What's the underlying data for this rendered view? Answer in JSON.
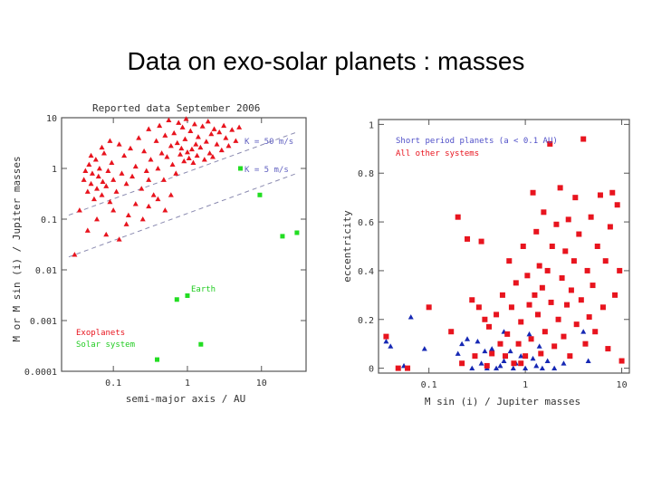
{
  "slide_title": "Data on exo-solar planets : masses",
  "colors": {
    "red": "#e8141e",
    "blue": "#1628b4",
    "green": "#22dd22",
    "frame": "#555555",
    "dash": "#8a8ab0"
  },
  "chart_data": [
    {
      "type": "scatter",
      "title": "Reported data September 2006",
      "xlabel": "semi-major axis / AU",
      "ylabel": "M or M sin (i) / Jupiter masses",
      "xscale": "log",
      "yscale": "log",
      "xlim": [
        0.02,
        40
      ],
      "ylim": [
        0.0001,
        10
      ],
      "x_ticks": [
        {
          "v": 0.1,
          "label": "0.1"
        },
        {
          "v": 1,
          "label": "1"
        },
        {
          "v": 10,
          "label": "10"
        }
      ],
      "y_ticks": [
        {
          "v": 10,
          "label": "10"
        },
        {
          "v": 1,
          "label": "1"
        },
        {
          "v": 0.1,
          "label": "0.1"
        },
        {
          "v": 0.01,
          "label": "0.01"
        },
        {
          "v": 0.001,
          "label": "0.001"
        },
        {
          "v": 0.0001,
          "label": "0.0001"
        }
      ],
      "lines": [
        {
          "label": "K = 50 m/s",
          "points": [
            [
              0.025,
              0.12
            ],
            [
              30,
              5.2
            ]
          ]
        },
        {
          "label": "K = 5 m/s",
          "points": [
            [
              0.025,
              0.018
            ],
            [
              30,
              0.8
            ]
          ]
        }
      ],
      "annotations": [
        {
          "text": "Earth",
          "x": 1,
          "y": 0.005
        }
      ],
      "legend": [
        "Exoplanets",
        "Solar system"
      ],
      "series": [
        {
          "name": "Exoplanets",
          "marker": "triangle",
          "color": "red",
          "points": [
            [
              0.04,
              0.6
            ],
            [
              0.042,
              0.9
            ],
            [
              0.045,
              0.35
            ],
            [
              0.047,
              1.2
            ],
            [
              0.05,
              0.5
            ],
            [
              0.052,
              0.8
            ],
            [
              0.055,
              0.25
            ],
            [
              0.058,
              1.5
            ],
            [
              0.06,
              0.4
            ],
            [
              0.063,
              0.7
            ],
            [
              0.065,
              1.0
            ],
            [
              0.07,
              0.3
            ],
            [
              0.072,
              0.55
            ],
            [
              0.075,
              2.0
            ],
            [
              0.08,
              0.45
            ],
            [
              0.085,
              0.9
            ],
            [
              0.09,
              0.22
            ],
            [
              0.095,
              1.3
            ],
            [
              0.1,
              0.6
            ],
            [
              0.11,
              0.35
            ],
            [
              0.12,
              3.0
            ],
            [
              0.13,
              0.8
            ],
            [
              0.14,
              1.8
            ],
            [
              0.15,
              0.5
            ],
            [
              0.16,
              0.12
            ],
            [
              0.17,
              2.5
            ],
            [
              0.18,
              0.7
            ],
            [
              0.2,
              1.1
            ],
            [
              0.22,
              4.0
            ],
            [
              0.24,
              0.4
            ],
            [
              0.26,
              2.2
            ],
            [
              0.28,
              0.9
            ],
            [
              0.3,
              6.0
            ],
            [
              0.32,
              1.5
            ],
            [
              0.35,
              0.3
            ],
            [
              0.38,
              3.5
            ],
            [
              0.4,
              1.0
            ],
            [
              0.42,
              7.0
            ],
            [
              0.45,
              2.0
            ],
            [
              0.48,
              0.6
            ],
            [
              0.5,
              4.5
            ],
            [
              0.53,
              1.7
            ],
            [
              0.56,
              9.0
            ],
            [
              0.6,
              2.8
            ],
            [
              0.63,
              1.2
            ],
            [
              0.66,
              5.0
            ],
            [
              0.7,
              0.8
            ],
            [
              0.73,
              3.2
            ],
            [
              0.76,
              8.0
            ],
            [
              0.8,
              1.9
            ],
            [
              0.83,
              2.5
            ],
            [
              0.86,
              6.5
            ],
            [
              0.9,
              1.4
            ],
            [
              0.93,
              3.8
            ],
            [
              0.96,
              9.5
            ],
            [
              1.0,
              2.1
            ],
            [
              1.05,
              1.6
            ],
            [
              1.1,
              5.5
            ],
            [
              1.15,
              2.4
            ],
            [
              1.2,
              1.3
            ],
            [
              1.25,
              7.5
            ],
            [
              1.3,
              3.0
            ],
            [
              1.35,
              1.8
            ],
            [
              1.4,
              4.2
            ],
            [
              1.5,
              2.6
            ],
            [
              1.6,
              6.8
            ],
            [
              1.7,
              1.5
            ],
            [
              1.8,
              3.4
            ],
            [
              1.9,
              8.5
            ],
            [
              2.0,
              2.0
            ],
            [
              2.1,
              4.8
            ],
            [
              2.2,
              1.7
            ],
            [
              2.3,
              6.0
            ],
            [
              2.5,
              3.0
            ],
            [
              2.7,
              5.2
            ],
            [
              2.9,
              2.3
            ],
            [
              3.1,
              7.0
            ],
            [
              3.3,
              4.0
            ],
            [
              3.6,
              2.8
            ],
            [
              4.0,
              5.8
            ],
            [
              4.5,
              3.5
            ],
            [
              5.0,
              6.5
            ],
            [
              0.03,
              0.02
            ],
            [
              0.045,
              0.06
            ],
            [
              0.06,
              0.1
            ],
            [
              0.08,
              0.05
            ],
            [
              0.1,
              0.15
            ],
            [
              0.12,
              0.04
            ],
            [
              0.15,
              0.08
            ],
            [
              0.2,
              0.2
            ],
            [
              0.25,
              0.1
            ],
            [
              0.3,
              0.18
            ],
            [
              0.4,
              0.25
            ],
            [
              0.5,
              0.15
            ],
            [
              0.6,
              0.3
            ],
            [
              0.05,
              1.8
            ],
            [
              0.07,
              2.6
            ],
            [
              0.09,
              3.5
            ],
            [
              0.035,
              0.15
            ],
            [
              0.3,
              0.6
            ]
          ]
        },
        {
          "name": "Solar system",
          "marker": "square",
          "color": "green",
          "points": [
            [
              0.39,
              0.00017
            ],
            [
              0.72,
              0.0026
            ],
            [
              1.0,
              0.0031
            ],
            [
              1.52,
              0.00034
            ],
            [
              5.2,
              1.0
            ],
            [
              9.5,
              0.3
            ],
            [
              19.2,
              0.046
            ],
            [
              30.1,
              0.054
            ]
          ]
        }
      ]
    },
    {
      "type": "scatter",
      "title": "",
      "xlabel": "M sin (i) / Jupiter masses",
      "ylabel": "eccentricity",
      "xscale": "log",
      "yscale": "linear",
      "xlim": [
        0.03,
        12
      ],
      "ylim": [
        -0.02,
        1.02
      ],
      "x_ticks": [
        {
          "v": 0.1,
          "label": "0.1"
        },
        {
          "v": 1,
          "label": "1"
        },
        {
          "v": 10,
          "label": "10"
        }
      ],
      "y_ticks": [
        {
          "v": 1,
          "label": "1"
        },
        {
          "v": 0.8,
          "label": "0.8"
        },
        {
          "v": 0.6,
          "label": "0.6"
        },
        {
          "v": 0.4,
          "label": "0.4"
        },
        {
          "v": 0.2,
          "label": "0.2"
        },
        {
          "v": 0,
          "label": "0"
        }
      ],
      "legend": [
        "Short period planets (a < 0.1 AU)",
        "All other systems"
      ],
      "series": [
        {
          "name": "Short period planets (a < 0.1 AU)",
          "marker": "triangle",
          "color": "blue",
          "points": [
            [
              0.036,
              0.11
            ],
            [
              0.04,
              0.09
            ],
            [
              0.065,
              0.21
            ],
            [
              0.055,
              0.01
            ],
            [
              0.09,
              0.08
            ],
            [
              0.2,
              0.06
            ],
            [
              0.22,
              0.1
            ],
            [
              0.25,
              0.12
            ],
            [
              0.28,
              0.0
            ],
            [
              0.3,
              0.05
            ],
            [
              0.35,
              0.02
            ],
            [
              0.4,
              0.0
            ],
            [
              0.45,
              0.08
            ],
            [
              0.5,
              0.0
            ],
            [
              0.55,
              0.01
            ],
            [
              0.6,
              0.03
            ],
            [
              0.7,
              0.07
            ],
            [
              0.75,
              0.0
            ],
            [
              0.8,
              0.02
            ],
            [
              0.9,
              0.05
            ],
            [
              1.0,
              0.0
            ],
            [
              1.1,
              0.14
            ],
            [
              1.2,
              0.04
            ],
            [
              1.3,
              0.01
            ],
            [
              1.4,
              0.09
            ],
            [
              1.5,
              0.0
            ],
            [
              1.7,
              0.03
            ],
            [
              2.0,
              0.0
            ],
            [
              2.5,
              0.02
            ],
            [
              4.0,
              0.15
            ],
            [
              4.5,
              0.03
            ],
            [
              0.32,
              0.11
            ],
            [
              0.6,
              0.15
            ],
            [
              0.38,
              0.07
            ],
            [
              0.85,
              0.1
            ]
          ]
        },
        {
          "name": "All other systems",
          "marker": "square",
          "color": "red",
          "points": [
            [
              0.036,
              0.13
            ],
            [
              0.048,
              0.0
            ],
            [
              0.06,
              0.0
            ],
            [
              0.1,
              0.25
            ],
            [
              0.17,
              0.15
            ],
            [
              0.2,
              0.62
            ],
            [
              0.22,
              0.02
            ],
            [
              0.25,
              0.53
            ],
            [
              0.28,
              0.28
            ],
            [
              0.3,
              0.05
            ],
            [
              0.35,
              0.52
            ],
            [
              0.38,
              0.2
            ],
            [
              0.4,
              0.01
            ],
            [
              0.42,
              0.17
            ],
            [
              0.45,
              0.06
            ],
            [
              0.5,
              0.22
            ],
            [
              0.55,
              0.1
            ],
            [
              0.58,
              0.3
            ],
            [
              0.62,
              0.05
            ],
            [
              0.65,
              0.14
            ],
            [
              0.68,
              0.44
            ],
            [
              0.72,
              0.25
            ],
            [
              0.76,
              0.02
            ],
            [
              0.8,
              0.35
            ],
            [
              0.85,
              0.1
            ],
            [
              0.9,
              0.19
            ],
            [
              0.95,
              0.5
            ],
            [
              1.0,
              0.05
            ],
            [
              1.05,
              0.38
            ],
            [
              1.1,
              0.26
            ],
            [
              1.15,
              0.12
            ],
            [
              1.2,
              0.72
            ],
            [
              1.25,
              0.3
            ],
            [
              1.3,
              0.56
            ],
            [
              1.35,
              0.22
            ],
            [
              1.4,
              0.42
            ],
            [
              1.45,
              0.06
            ],
            [
              1.5,
              0.33
            ],
            [
              1.55,
              0.64
            ],
            [
              1.6,
              0.15
            ],
            [
              1.7,
              0.4
            ],
            [
              1.8,
              0.92
            ],
            [
              1.85,
              0.27
            ],
            [
              1.9,
              0.5
            ],
            [
              2.0,
              0.09
            ],
            [
              2.1,
              0.59
            ],
            [
              2.2,
              0.2
            ],
            [
              2.3,
              0.74
            ],
            [
              2.4,
              0.37
            ],
            [
              2.5,
              0.13
            ],
            [
              2.6,
              0.48
            ],
            [
              2.7,
              0.26
            ],
            [
              2.8,
              0.61
            ],
            [
              2.9,
              0.05
            ],
            [
              3.0,
              0.32
            ],
            [
              3.2,
              0.44
            ],
            [
              3.4,
              0.18
            ],
            [
              3.6,
              0.55
            ],
            [
              3.8,
              0.28
            ],
            [
              4.0,
              0.94
            ],
            [
              4.2,
              0.1
            ],
            [
              4.4,
              0.4
            ],
            [
              4.6,
              0.21
            ],
            [
              4.8,
              0.62
            ],
            [
              5.0,
              0.34
            ],
            [
              5.3,
              0.15
            ],
            [
              5.6,
              0.5
            ],
            [
              6.0,
              0.71
            ],
            [
              6.4,
              0.25
            ],
            [
              6.8,
              0.44
            ],
            [
              7.2,
              0.08
            ],
            [
              7.6,
              0.58
            ],
            [
              8.0,
              0.72
            ],
            [
              8.5,
              0.3
            ],
            [
              9.0,
              0.67
            ],
            [
              9.5,
              0.4
            ],
            [
              10.0,
              0.03
            ],
            [
              3.3,
              0.7
            ],
            [
              0.33,
              0.25
            ],
            [
              0.9,
              0.02
            ]
          ]
        }
      ]
    }
  ]
}
